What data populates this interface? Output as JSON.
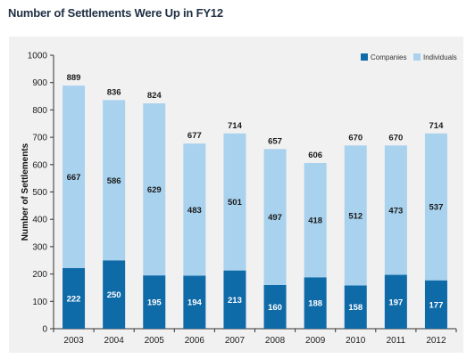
{
  "title": "Number of Settlements Were Up in FY12",
  "chart_data": {
    "type": "bar",
    "stacked": true,
    "title": "Number of Settlements Were Up in FY12",
    "xlabel": "",
    "ylabel": "Number of Settlements",
    "ylim": [
      0,
      1000
    ],
    "yticks": [
      0,
      100,
      200,
      300,
      400,
      500,
      600,
      700,
      800,
      900,
      1000
    ],
    "grid": false,
    "legend_position": "top-right",
    "categories": [
      "2003",
      "2004",
      "2005",
      "2006",
      "2007",
      "2008",
      "2009",
      "2010",
      "2011",
      "2012"
    ],
    "series": [
      {
        "name": "Companies",
        "color": "#0f6aa8",
        "values": [
          222,
          250,
          195,
          194,
          213,
          160,
          188,
          158,
          197,
          177
        ]
      },
      {
        "name": "Individuals",
        "color": "#a9d2ee",
        "values": [
          667,
          586,
          629,
          483,
          501,
          497,
          418,
          512,
          473,
          537
        ]
      }
    ],
    "totals": [
      889,
      836,
      824,
      677,
      714,
      657,
      606,
      670,
      670,
      714
    ]
  }
}
